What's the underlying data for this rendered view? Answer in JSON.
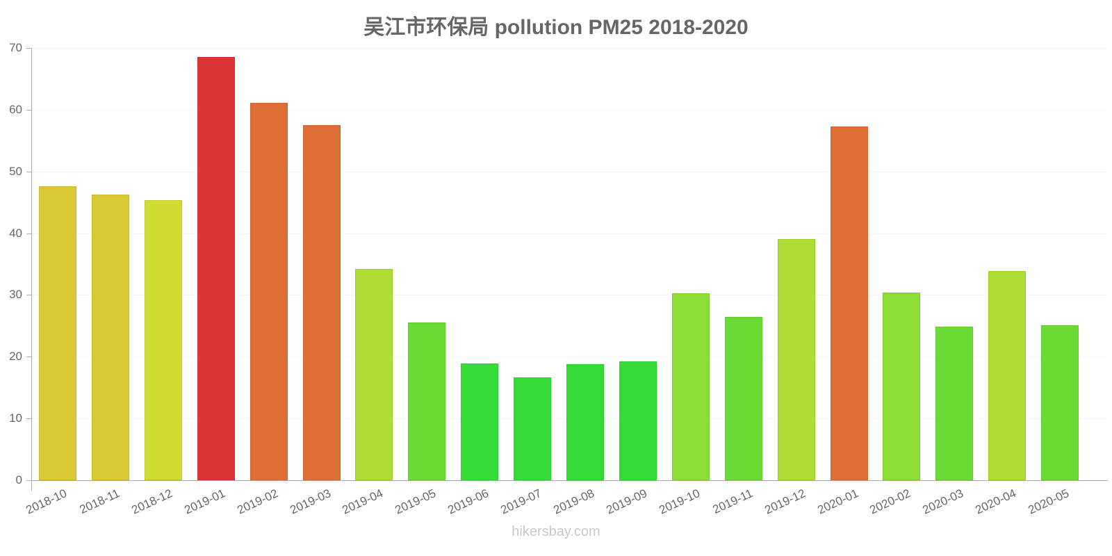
{
  "title": "吴江市环保局 pollution PM25 2018-2020",
  "watermark": "hikersbay.com",
  "chart_data": {
    "type": "bar",
    "title": "吴江市环保局 pollution PM25 2018-2020",
    "xlabel": "",
    "ylabel": "",
    "ylim": [
      0,
      70
    ],
    "yticks": [
      0,
      10,
      20,
      30,
      40,
      50,
      60,
      70
    ],
    "grid": true,
    "legend": null,
    "categories": [
      "2018-10",
      "2018-11",
      "2018-12",
      "2019-01",
      "2019-02",
      "2019-03",
      "2019-04",
      "2019-05",
      "2019-06",
      "2019-07",
      "2019-08",
      "2019-09",
      "2019-10",
      "2019-11",
      "2019-12",
      "2020-01",
      "2020-02",
      "2020-03",
      "2020-04",
      "2020-05"
    ],
    "values": [
      47.6,
      46.3,
      45.4,
      68.5,
      61.1,
      57.5,
      34.2,
      25.5,
      18.9,
      16.7,
      18.8,
      19.2,
      30.3,
      26.4,
      39.0,
      57.3,
      30.4,
      24.9,
      33.9,
      25.1
    ],
    "colors": [
      "#dac934",
      "#dac934",
      "#d0dc33",
      "#db3535",
      "#dd6f35",
      "#dd6f35",
      "#aedd33",
      "#6adc35",
      "#35dc38",
      "#35dc38",
      "#35dc38",
      "#35dc38",
      "#8bdd35",
      "#6adc35",
      "#aedd33",
      "#dd6f35",
      "#8bdd35",
      "#6adc35",
      "#aedd33",
      "#6adc35"
    ]
  }
}
